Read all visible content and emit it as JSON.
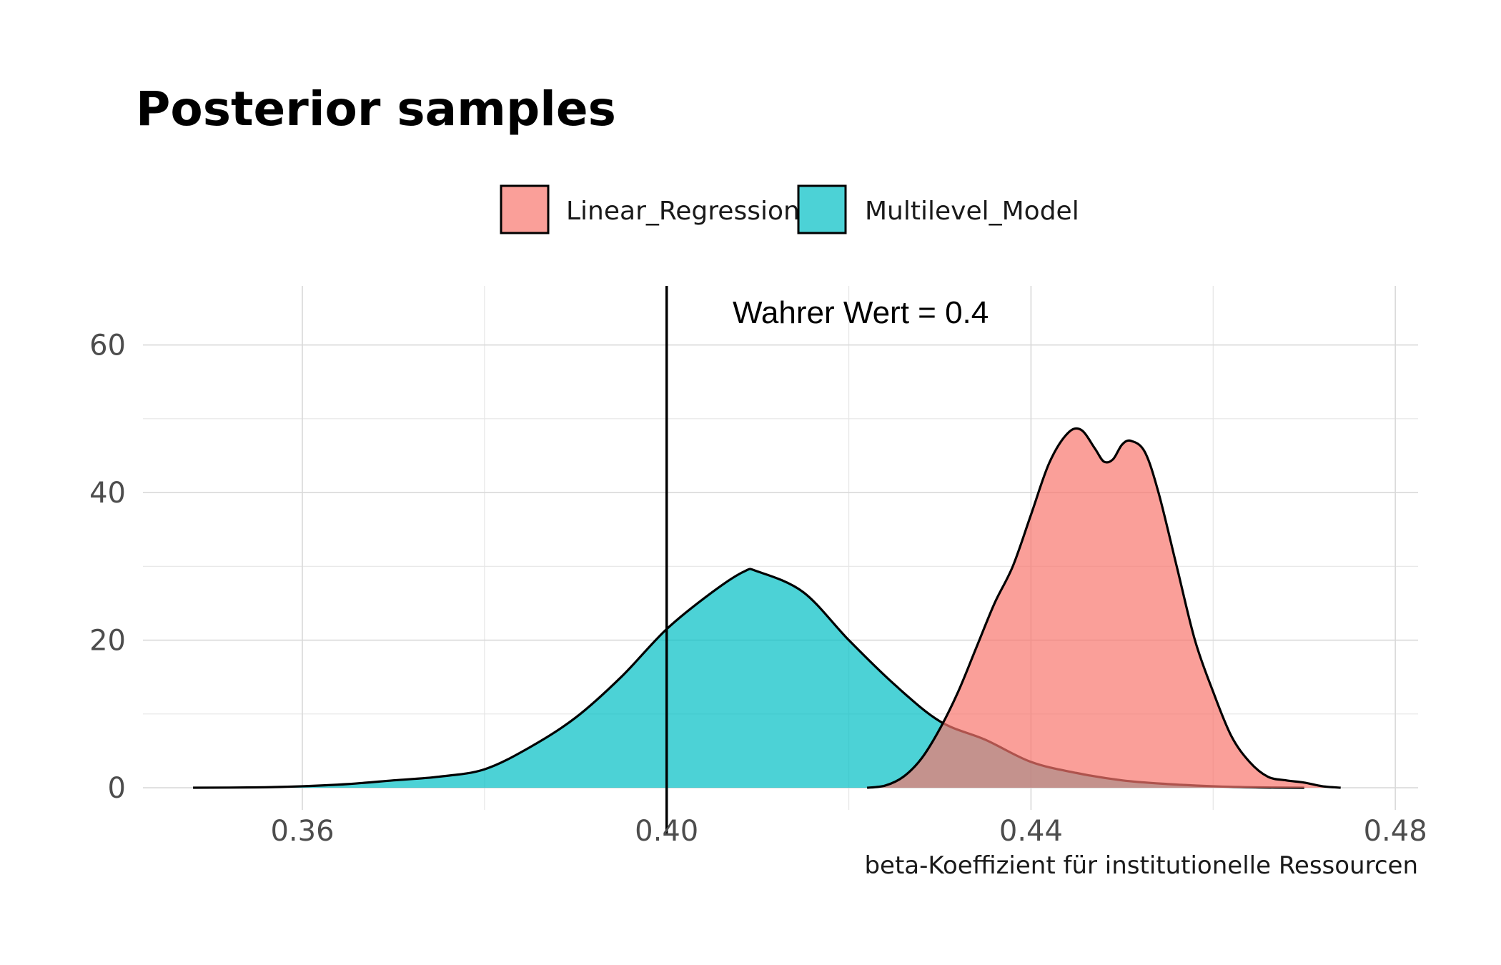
{
  "chart_data": {
    "type": "area",
    "chart_kind": "density",
    "title": "Posterior samples",
    "xlabel": "beta-Koeffizient für institutionelle Ressourcen",
    "ylabel": "",
    "xlim": [
      0.3425,
      0.4825
    ],
    "ylim": [
      -3,
      68
    ],
    "x_ticks": [
      0.36,
      0.4,
      0.44,
      0.48
    ],
    "x_tick_labels": [
      "0.36",
      "0.40",
      "0.44",
      "0.48"
    ],
    "y_ticks": [
      0,
      20,
      40,
      60
    ],
    "y_tick_labels": [
      "0",
      "20",
      "40",
      "60"
    ],
    "grid": true,
    "legend_position": "top",
    "reference_line": {
      "x": 0.4,
      "label": "Wahrer Wert = 0.4"
    },
    "series": [
      {
        "name": "Linear_Regression",
        "color": "#F8766D",
        "points": [
          [
            0.422,
            0.0
          ],
          [
            0.424,
            0.3
          ],
          [
            0.426,
            1.5
          ],
          [
            0.428,
            4.0
          ],
          [
            0.43,
            8.0
          ],
          [
            0.432,
            13.0
          ],
          [
            0.434,
            19.0
          ],
          [
            0.436,
            25.0
          ],
          [
            0.438,
            30.0
          ],
          [
            0.44,
            37.0
          ],
          [
            0.442,
            44.0
          ],
          [
            0.444,
            48.0
          ],
          [
            0.4455,
            48.5
          ],
          [
            0.447,
            46.0
          ],
          [
            0.448,
            44.2
          ],
          [
            0.449,
            44.5
          ],
          [
            0.45,
            46.5
          ],
          [
            0.451,
            47.0
          ],
          [
            0.4525,
            45.5
          ],
          [
            0.454,
            40.0
          ],
          [
            0.456,
            30.0
          ],
          [
            0.458,
            20.0
          ],
          [
            0.46,
            13.0
          ],
          [
            0.462,
            7.0
          ],
          [
            0.464,
            3.5
          ],
          [
            0.466,
            1.5
          ],
          [
            0.468,
            1.0
          ],
          [
            0.47,
            0.7
          ],
          [
            0.472,
            0.2
          ],
          [
            0.474,
            0.0
          ]
        ]
      },
      {
        "name": "Multilevel_Model",
        "color": "#00BFC4",
        "points": [
          [
            0.348,
            0.0
          ],
          [
            0.355,
            0.05
          ],
          [
            0.36,
            0.2
          ],
          [
            0.365,
            0.5
          ],
          [
            0.37,
            1.0
          ],
          [
            0.375,
            1.5
          ],
          [
            0.38,
            2.5
          ],
          [
            0.385,
            5.5
          ],
          [
            0.39,
            9.5
          ],
          [
            0.395,
            15.0
          ],
          [
            0.4,
            21.5
          ],
          [
            0.405,
            26.5
          ],
          [
            0.4085,
            29.3
          ],
          [
            0.41,
            29.3
          ],
          [
            0.415,
            26.5
          ],
          [
            0.42,
            20.0
          ],
          [
            0.425,
            14.0
          ],
          [
            0.43,
            9.0
          ],
          [
            0.435,
            6.5
          ],
          [
            0.44,
            3.5
          ],
          [
            0.445,
            2.0
          ],
          [
            0.45,
            1.0
          ],
          [
            0.455,
            0.5
          ],
          [
            0.46,
            0.2
          ],
          [
            0.465,
            0.05
          ],
          [
            0.47,
            0.0
          ]
        ]
      }
    ]
  }
}
